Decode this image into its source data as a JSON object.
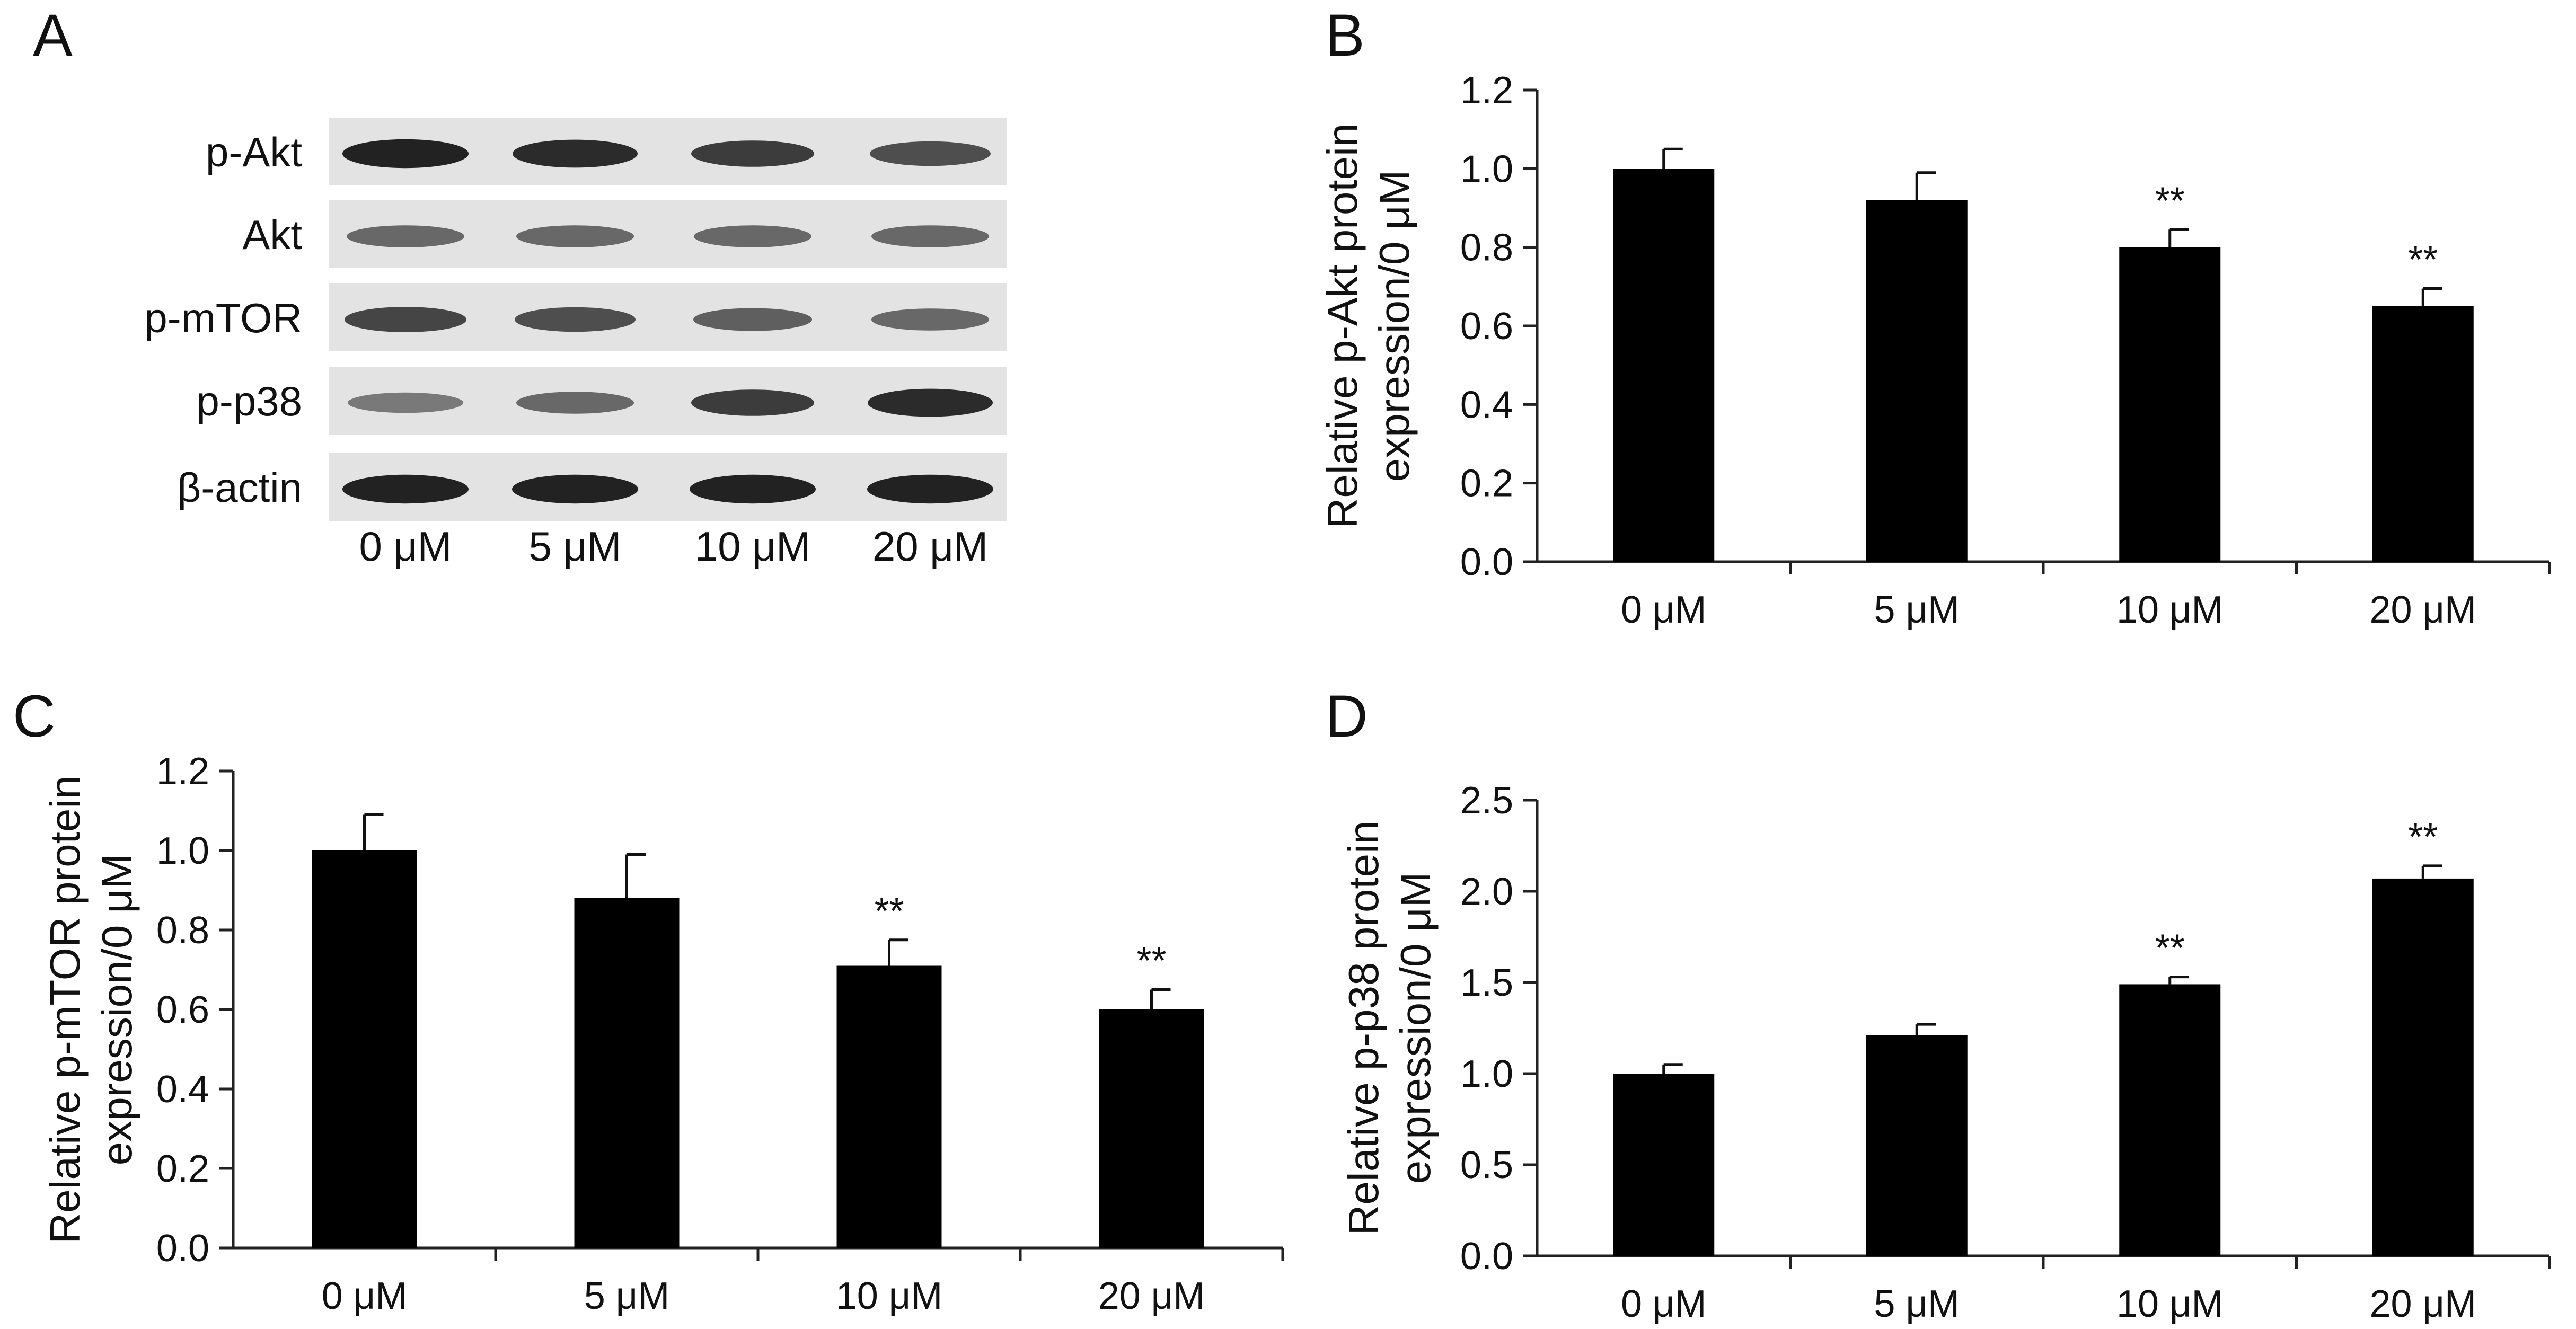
{
  "panel_labels": {
    "a": "A",
    "b": "B",
    "c": "C",
    "d": "D"
  },
  "blot": {
    "rows": [
      "p-Akt",
      "Akt",
      "p-mTOR",
      "p-p38",
      "β-actin"
    ],
    "lanes": [
      "0 μM",
      "5 μM",
      "10 μM",
      "20 μM"
    ],
    "band_intensity": [
      [
        0.95,
        0.9,
        0.8,
        0.7
      ],
      [
        0.55,
        0.55,
        0.55,
        0.55
      ],
      [
        0.75,
        0.7,
        0.6,
        0.55
      ],
      [
        0.45,
        0.55,
        0.8,
        0.9
      ],
      [
        0.95,
        0.95,
        0.95,
        0.95
      ]
    ]
  },
  "chart_data": [
    {
      "panel": "B",
      "type": "bar",
      "categories": [
        "0 μM",
        "5 μM",
        "10 μM",
        "20 μM"
      ],
      "values": [
        1.0,
        0.92,
        0.8,
        0.65
      ],
      "errors": [
        0.05,
        0.07,
        0.045,
        0.045
      ],
      "annotations": [
        "",
        "",
        "**",
        "**"
      ],
      "ylabel_lines": [
        "Relative p-Akt protein",
        "expression/0 μM"
      ],
      "ylim": [
        0,
        1.2
      ],
      "yticks": [
        "0.0",
        "0.2",
        "0.4",
        "0.6",
        "0.8",
        "1.0",
        "1.2"
      ],
      "bar_color": "#000000"
    },
    {
      "panel": "C",
      "type": "bar",
      "categories": [
        "0 μM",
        "5 μM",
        "10 μM",
        "20 μM"
      ],
      "values": [
        1.0,
        0.88,
        0.71,
        0.6
      ],
      "errors": [
        0.09,
        0.11,
        0.065,
        0.05
      ],
      "annotations": [
        "",
        "",
        "**",
        "**"
      ],
      "ylabel_lines": [
        "Relative p-mTOR protein",
        "expression/0 μM"
      ],
      "ylim": [
        0,
        1.2
      ],
      "yticks": [
        "0.0",
        "0.2",
        "0.4",
        "0.6",
        "0.8",
        "1.0",
        "1.2"
      ],
      "bar_color": "#000000"
    },
    {
      "panel": "D",
      "type": "bar",
      "categories": [
        "0 μM",
        "5 μM",
        "10 μM",
        "20 μM"
      ],
      "values": [
        1.0,
        1.21,
        1.49,
        2.07
      ],
      "errors": [
        0.05,
        0.06,
        0.04,
        0.07
      ],
      "annotations": [
        "",
        "",
        "**",
        "**"
      ],
      "ylabel_lines": [
        "Relative p-p38 protein",
        "expression/0 μM"
      ],
      "ylim": [
        0,
        2.5
      ],
      "yticks": [
        "0.0",
        "0.5",
        "1.0",
        "1.5",
        "2.0",
        "2.5"
      ],
      "bar_color": "#000000"
    }
  ]
}
